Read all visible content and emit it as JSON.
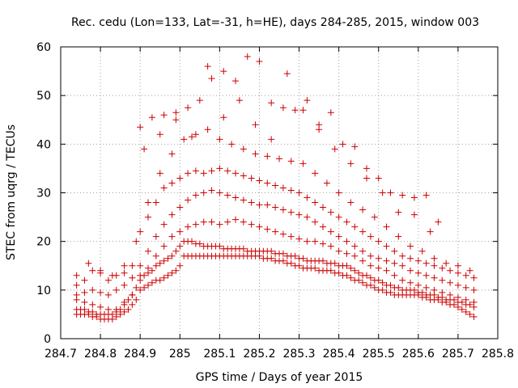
{
  "chart_data": {
    "type": "scatter",
    "title": "Rec. cedu (Lon=133, Lat=-31, h=HE), days 284-285, 2015, window 003",
    "xlabel": "GPS time / Days of year 2015",
    "ylabel": "STEC from uqrg / TECUs",
    "xlim": [
      284.7,
      285.8
    ],
    "ylim": [
      0,
      60
    ],
    "xticks": [
      284.7,
      284.8,
      284.9,
      285,
      285.1,
      285.2,
      285.3,
      285.4,
      285.5,
      285.6,
      285.7,
      285.8
    ],
    "xtick_labels": [
      "284.7",
      "284.8",
      "284.9",
      "285",
      "285.1",
      "285.2",
      "285.3",
      "285.4",
      "285.5",
      "285.6",
      "285.7",
      "285.8"
    ],
    "yticks": [
      0,
      10,
      20,
      30,
      40,
      50,
      60
    ],
    "ytick_labels": [
      "0",
      "10",
      "20",
      "30",
      "40",
      "50",
      "60"
    ],
    "grid": true,
    "marker": "+",
    "color": "#cc0000",
    "series": [
      {
        "name": "",
        "x": [
          284.74,
          284.75,
          284.76,
          284.77,
          284.78,
          284.79,
          284.8,
          284.81,
          284.82,
          284.83,
          284.84,
          284.85,
          284.86,
          284.87,
          284.88,
          284.89,
          284.9,
          284.91,
          284.92,
          284.93,
          284.94,
          284.95,
          284.96,
          284.97,
          284.98,
          284.99,
          285.0,
          285.01,
          285.02,
          285.03,
          285.04,
          285.05,
          285.06,
          285.07,
          285.08,
          285.09,
          285.1,
          285.11,
          285.12,
          285.13,
          285.14,
          285.15,
          285.16,
          285.17,
          285.18,
          285.19,
          285.2,
          285.21,
          285.22,
          285.23,
          285.24,
          285.25,
          285.26,
          285.27,
          285.28,
          285.29,
          285.3,
          285.31,
          285.32,
          285.33,
          285.34,
          285.35,
          285.36,
          285.37,
          285.38,
          285.39,
          285.4,
          285.41,
          285.42,
          285.43,
          285.44,
          285.45,
          285.46,
          285.47,
          285.48,
          285.49,
          285.5,
          285.51,
          285.52,
          285.53,
          285.54,
          285.55,
          285.56,
          285.57,
          285.58,
          285.59,
          285.6,
          285.61,
          285.62,
          285.63,
          285.64,
          285.65,
          285.66,
          285.67,
          285.68,
          285.69,
          285.7,
          285.71,
          285.72,
          285.73,
          285.74
        ],
        "y": [
          5,
          5,
          5,
          5,
          4.5,
          4.5,
          4,
          4,
          4,
          4,
          4.5,
          5,
          5.5,
          6,
          7,
          8,
          10,
          10.5,
          11,
          11.5,
          12,
          12,
          12.5,
          13,
          13.5,
          14,
          15,
          17,
          17,
          17,
          17,
          17,
          17,
          17,
          17,
          17,
          17,
          17,
          17,
          17,
          17,
          17,
          17,
          17,
          17,
          17,
          17,
          16.5,
          16.5,
          16.5,
          16,
          16,
          16,
          15.5,
          15.5,
          15,
          15,
          14.5,
          14.5,
          14.5,
          14.5,
          14,
          14,
          14,
          14,
          13.5,
          13.5,
          13,
          13,
          12.5,
          12,
          12,
          11.5,
          11,
          11,
          10.5,
          10,
          10,
          9.5,
          9.5,
          9,
          9,
          9,
          9,
          9,
          9,
          9,
          8.5,
          8.5,
          8,
          8,
          8,
          7.5,
          7.5,
          7,
          7,
          6.5,
          6,
          5.5,
          5,
          4.5
        ]
      },
      {
        "name": "",
        "x": [
          284.74,
          284.75,
          284.76,
          284.77,
          284.78,
          284.79,
          284.8,
          284.81,
          284.82,
          284.83,
          284.84,
          284.85,
          284.86,
          284.87,
          284.88,
          284.89,
          284.9,
          284.91,
          284.92,
          284.93,
          284.94,
          284.95,
          284.96,
          284.97,
          284.98,
          284.99,
          285.0,
          285.01,
          285.02,
          285.03,
          285.04,
          285.05,
          285.06,
          285.07,
          285.08,
          285.09,
          285.1,
          285.11,
          285.12,
          285.13,
          285.14,
          285.15,
          285.16,
          285.17,
          285.18,
          285.19,
          285.2,
          285.21,
          285.22,
          285.23,
          285.24,
          285.25,
          285.26,
          285.27,
          285.28,
          285.29,
          285.3,
          285.31,
          285.32,
          285.33,
          285.34,
          285.35,
          285.36,
          285.37,
          285.38,
          285.39,
          285.4,
          285.41,
          285.42,
          285.43,
          285.44,
          285.45,
          285.46,
          285.47,
          285.48,
          285.49,
          285.5,
          285.51,
          285.52,
          285.53,
          285.54,
          285.55,
          285.56,
          285.57,
          285.58,
          285.59,
          285.6,
          285.61,
          285.62,
          285.63,
          285.64,
          285.65,
          285.66,
          285.67,
          285.68,
          285.69,
          285.7,
          285.71,
          285.72,
          285.73,
          285.74
        ],
        "y": [
          6,
          6,
          6,
          5.5,
          5.5,
          5,
          5,
          5,
          5,
          5,
          5.5,
          6,
          7,
          8,
          9,
          10.5,
          12,
          13,
          13.5,
          14,
          15,
          15.5,
          16,
          16.5,
          17,
          18,
          19,
          20,
          20,
          20,
          19.5,
          19.5,
          19,
          19,
          19,
          19,
          19,
          18.5,
          18.5,
          18.5,
          18.5,
          18.5,
          18.5,
          18,
          18,
          18,
          18,
          18,
          18,
          18,
          17.5,
          17.5,
          17.5,
          17,
          17,
          17,
          16.5,
          16.5,
          16,
          16,
          16,
          16,
          16,
          15.5,
          15.5,
          15.5,
          15,
          15,
          15,
          14.5,
          14,
          13.5,
          13,
          13,
          12.5,
          12,
          12,
          11.5,
          11,
          11,
          10.5,
          10.5,
          10,
          10,
          10,
          10,
          9.5,
          9.5,
          9,
          9,
          9,
          8.5,
          8.5,
          8,
          8,
          8,
          7.5,
          7.5,
          7,
          7,
          6.5
        ]
      },
      {
        "name": "",
        "x": [
          284.74,
          284.76,
          284.78,
          284.8,
          284.82,
          284.84,
          284.86,
          284.88,
          284.9,
          284.92,
          284.94,
          284.96,
          284.98,
          285.0,
          285.02,
          285.04,
          285.06,
          285.08,
          285.1,
          285.12,
          285.14,
          285.16,
          285.18,
          285.2,
          285.22,
          285.24,
          285.26,
          285.28,
          285.3,
          285.32,
          285.34,
          285.36,
          285.38,
          285.4,
          285.42,
          285.44,
          285.46,
          285.48,
          285.5,
          285.52,
          285.54,
          285.56,
          285.58,
          285.6,
          285.62,
          285.64,
          285.66,
          285.68,
          285.7,
          285.72,
          285.74
        ],
        "y": [
          8,
          7.5,
          7,
          6.5,
          6,
          6,
          7.5,
          9,
          13,
          14.5,
          17,
          19,
          21,
          22,
          23,
          23.5,
          24,
          24,
          23.5,
          24,
          24.5,
          24,
          23.5,
          23,
          22.5,
          22,
          21.5,
          21,
          20.5,
          20,
          20,
          19.5,
          19,
          18,
          17.5,
          17,
          16,
          15,
          14.5,
          14,
          13,
          12,
          11.5,
          11,
          10.5,
          10,
          9.5,
          9,
          8.5,
          8,
          7.5
        ]
      },
      {
        "name": "",
        "x": [
          284.74,
          284.76,
          284.78,
          284.8,
          284.82,
          284.84,
          284.86,
          284.88,
          284.9,
          284.92,
          284.94,
          284.96,
          284.98,
          285.0,
          285.02,
          285.04,
          285.06,
          285.08,
          285.1,
          285.12,
          285.14,
          285.16,
          285.18,
          285.2,
          285.22,
          285.24,
          285.26,
          285.28,
          285.3,
          285.32,
          285.34,
          285.36,
          285.38,
          285.4,
          285.42,
          285.44,
          285.46,
          285.48,
          285.5,
          285.52,
          285.54,
          285.56,
          285.58,
          285.6,
          285.62,
          285.64,
          285.66,
          285.68,
          285.7,
          285.72,
          285.74
        ],
        "y": [
          9,
          9.5,
          10,
          9.5,
          9,
          10,
          11,
          12.5,
          15,
          18,
          21,
          23.5,
          25.5,
          27,
          28.5,
          29.5,
          30,
          30.5,
          30,
          29.5,
          29,
          28.5,
          28,
          27.5,
          27.5,
          27,
          26.5,
          26,
          25.5,
          25,
          24,
          23,
          22,
          21,
          20,
          19,
          18,
          17,
          16.5,
          16,
          15.5,
          15,
          14,
          13.5,
          13,
          12.5,
          12,
          11.5,
          11,
          10.5,
          10
        ]
      },
      {
        "name": "",
        "x": [
          284.74,
          284.76,
          284.78,
          284.8,
          284.82,
          284.84,
          284.86,
          284.88,
          284.9,
          284.92,
          284.94,
          284.96,
          284.98,
          285.0,
          285.02,
          285.04,
          285.06,
          285.08,
          285.1,
          285.12,
          285.14,
          285.16,
          285.18,
          285.2,
          285.22,
          285.24,
          285.26,
          285.28,
          285.3,
          285.32,
          285.34,
          285.36,
          285.38,
          285.4,
          285.42,
          285.44,
          285.46,
          285.48,
          285.5,
          285.52,
          285.54,
          285.56,
          285.58,
          285.6,
          285.62,
          285.64,
          285.66,
          285.68,
          285.7,
          285.72,
          285.74
        ],
        "y": [
          11,
          12,
          14,
          13.5,
          12,
          13,
          13.5,
          15,
          22,
          25,
          28,
          31,
          32,
          33,
          34,
          34.5,
          34,
          34.5,
          35,
          34.5,
          34,
          33.5,
          33,
          32.5,
          32,
          31.5,
          31,
          30.5,
          30,
          29,
          28,
          27,
          26,
          25,
          24,
          23,
          22,
          21,
          20,
          19,
          18,
          17,
          16.5,
          16,
          15.5,
          15,
          14.5,
          14,
          13.5,
          13,
          12.5
        ]
      },
      {
        "name": "",
        "x": [
          284.74,
          284.77,
          284.8,
          284.83,
          284.86,
          284.89,
          284.92,
          284.95,
          284.98,
          285.01,
          285.04,
          285.07,
          285.1,
          285.13,
          285.16,
          285.19,
          285.22,
          285.25,
          285.28,
          285.31,
          285.34,
          285.37,
          285.4,
          285.43,
          285.46,
          285.49,
          285.52,
          285.55,
          285.58,
          285.61,
          285.64,
          285.67,
          285.7,
          285.73
        ],
        "y": [
          13,
          15.5,
          14,
          13,
          15,
          20,
          28,
          34,
          38,
          41,
          42,
          43,
          41,
          40,
          39,
          38,
          37.5,
          37,
          36.5,
          36,
          34,
          32,
          30,
          28,
          26.5,
          25,
          23,
          21,
          19,
          18,
          16.5,
          15.5,
          15,
          14
        ]
      },
      {
        "name": "",
        "x": [
          284.9,
          284.93,
          284.96,
          284.99,
          285.02,
          285.05,
          285.08,
          285.11,
          285.14,
          285.17,
          285.2,
          285.23,
          285.26,
          285.29,
          285.32,
          285.35,
          285.38,
          285.41,
          285.44,
          285.47,
          285.5,
          285.53,
          285.56,
          285.59,
          285.62,
          285.65
        ],
        "y": [
          43.5,
          45.5,
          46,
          46.5,
          47.5,
          49,
          53.5,
          55,
          53,
          58,
          57,
          48.5,
          47.5,
          47,
          49,
          44,
          46.5,
          40,
          39.5,
          35,
          33,
          30,
          29.5,
          29,
          29.5,
          24
        ]
      },
      {
        "name": "",
        "x": [
          284.91,
          284.95,
          284.99,
          285.03,
          285.07,
          285.11,
          285.15,
          285.19,
          285.23,
          285.27,
          285.31,
          285.35,
          285.39,
          285.43,
          285.47,
          285.51,
          285.55,
          285.59,
          285.63
        ],
        "y": [
          39,
          42,
          45,
          41.5,
          56,
          45.5,
          49,
          44,
          41,
          54.5,
          47,
          43,
          39,
          36,
          33,
          30,
          26,
          25.5,
          22
        ]
      }
    ]
  }
}
